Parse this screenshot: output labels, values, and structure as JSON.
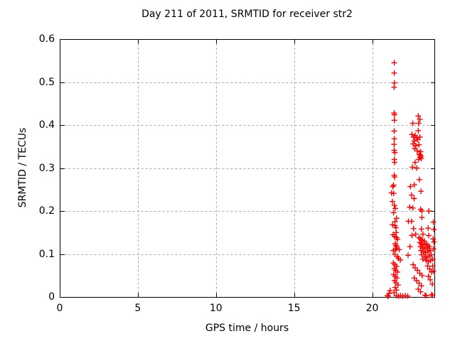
{
  "window": {
    "background": "#ffffff"
  },
  "chart_data": {
    "type": "scatter",
    "title": "Day 211 of 2011, SRMTID for receiver str2",
    "xlabel": "GPS time / hours",
    "ylabel": "SRMTID / TECUs",
    "xlim": [
      0,
      24
    ],
    "ylim": [
      0,
      0.6
    ],
    "x_ticks": [
      0,
      5,
      10,
      15,
      20
    ],
    "x_tick_labels": [
      "0",
      "5",
      "10",
      "15",
      "20"
    ],
    "y_ticks": [
      0,
      0.1,
      0.2,
      0.3,
      0.4,
      0.5,
      0.6
    ],
    "y_tick_labels": [
      "0",
      "0.1",
      "0.2",
      "0.3",
      "0.4",
      "0.5",
      "0.6"
    ],
    "grid": true,
    "legend": "none",
    "marker": "plus",
    "marker_color": "#ff0000",
    "grid_color": "#a8a8a8",
    "frame_color": "#000000",
    "series": [
      {
        "name": "SRMTID",
        "points": [
          [
            21.41,
            0.545
          ],
          [
            21.41,
            0.521
          ],
          [
            21.42,
            0.498
          ],
          [
            21.4,
            0.488
          ],
          [
            21.4,
            0.428
          ],
          [
            21.43,
            0.424
          ],
          [
            21.42,
            0.411
          ],
          [
            21.41,
            0.386
          ],
          [
            21.42,
            0.368
          ],
          [
            21.4,
            0.355
          ],
          [
            21.41,
            0.341
          ],
          [
            21.45,
            0.336
          ],
          [
            21.42,
            0.32
          ],
          [
            21.44,
            0.313
          ],
          [
            21.41,
            0.283
          ],
          [
            21.44,
            0.279
          ],
          [
            21.37,
            0.26
          ],
          [
            21.32,
            0.257
          ],
          [
            21.24,
            0.242
          ],
          [
            21.38,
            0.241
          ],
          [
            21.3,
            0.222
          ],
          [
            21.42,
            0.213
          ],
          [
            21.48,
            0.206
          ],
          [
            21.37,
            0.196
          ],
          [
            21.56,
            0.183
          ],
          [
            21.46,
            0.175
          ],
          [
            21.3,
            0.168
          ],
          [
            21.46,
            0.166
          ],
          [
            21.52,
            0.161
          ],
          [
            21.54,
            0.15
          ],
          [
            21.34,
            0.145
          ],
          [
            21.44,
            0.141
          ],
          [
            21.56,
            0.138
          ],
          [
            21.62,
            0.134
          ],
          [
            21.48,
            0.124
          ],
          [
            21.52,
            0.12
          ],
          [
            21.55,
            0.117
          ],
          [
            21.58,
            0.113
          ],
          [
            21.5,
            0.11
          ],
          [
            21.35,
            0.108
          ],
          [
            21.73,
            0.11
          ],
          [
            21.45,
            0.099
          ],
          [
            21.6,
            0.094
          ],
          [
            21.68,
            0.09
          ],
          [
            21.8,
            0.086
          ],
          [
            21.35,
            0.079
          ],
          [
            21.45,
            0.075
          ],
          [
            21.55,
            0.071
          ],
          [
            21.42,
            0.066
          ],
          [
            21.5,
            0.062
          ],
          [
            21.62,
            0.058
          ],
          [
            21.38,
            0.052
          ],
          [
            21.48,
            0.048
          ],
          [
            21.58,
            0.044
          ],
          [
            21.44,
            0.038
          ],
          [
            21.52,
            0.033
          ],
          [
            21.65,
            0.028
          ],
          [
            21.47,
            0.022
          ],
          [
            21.55,
            0.016
          ],
          [
            21.4,
            0.01
          ],
          [
            21.15,
            0.015
          ],
          [
            21.08,
            0.008
          ],
          [
            20.98,
            0.003
          ],
          [
            21.03,
            0.002
          ],
          [
            21.55,
            0.003
          ],
          [
            21.68,
            0.002
          ],
          [
            21.82,
            0.003
          ],
          [
            21.96,
            0.002
          ],
          [
            22.12,
            0.003
          ],
          [
            22.28,
            0.002
          ],
          [
            23.38,
            0.004
          ],
          [
            23.46,
            0.003
          ],
          [
            23.8,
            0.005
          ],
          [
            23.86,
            0.004
          ],
          [
            22.6,
            0.404
          ],
          [
            22.95,
            0.421
          ],
          [
            23.05,
            0.413
          ],
          [
            22.97,
            0.404
          ],
          [
            22.95,
            0.387
          ],
          [
            22.55,
            0.378
          ],
          [
            22.65,
            0.372
          ],
          [
            22.75,
            0.376
          ],
          [
            22.85,
            0.37
          ],
          [
            22.7,
            0.363
          ],
          [
            22.92,
            0.366
          ],
          [
            23.05,
            0.372
          ],
          [
            22.62,
            0.356
          ],
          [
            22.8,
            0.352
          ],
          [
            23.0,
            0.354
          ],
          [
            22.72,
            0.345
          ],
          [
            22.88,
            0.34
          ],
          [
            23.1,
            0.338
          ],
          [
            23.02,
            0.332
          ],
          [
            23.08,
            0.33
          ],
          [
            23.12,
            0.327
          ],
          [
            23.06,
            0.325
          ],
          [
            23.14,
            0.322
          ],
          [
            22.98,
            0.32
          ],
          [
            22.75,
            0.313
          ],
          [
            22.58,
            0.302
          ],
          [
            22.85,
            0.3
          ],
          [
            23.02,
            0.273
          ],
          [
            22.7,
            0.261
          ],
          [
            22.45,
            0.257
          ],
          [
            23.12,
            0.246
          ],
          [
            22.52,
            0.237
          ],
          [
            22.68,
            0.229
          ],
          [
            22.4,
            0.209
          ],
          [
            22.6,
            0.207
          ],
          [
            23.1,
            0.204
          ],
          [
            23.18,
            0.2
          ],
          [
            23.63,
            0.2
          ],
          [
            23.18,
            0.185
          ],
          [
            22.32,
            0.176
          ],
          [
            22.52,
            0.176
          ],
          [
            22.65,
            0.159
          ],
          [
            23.15,
            0.158
          ],
          [
            23.58,
            0.16
          ],
          [
            22.55,
            0.143
          ],
          [
            22.78,
            0.146
          ],
          [
            23.25,
            0.146
          ],
          [
            23.62,
            0.143
          ],
          [
            22.42,
            0.117
          ],
          [
            22.3,
            0.097
          ],
          [
            23.0,
            0.138
          ],
          [
            23.1,
            0.135
          ],
          [
            23.2,
            0.132
          ],
          [
            23.35,
            0.13
          ],
          [
            23.05,
            0.127
          ],
          [
            23.15,
            0.124
          ],
          [
            23.3,
            0.122
          ],
          [
            23.45,
            0.124
          ],
          [
            23.55,
            0.12
          ],
          [
            23.08,
            0.117
          ],
          [
            23.22,
            0.114
          ],
          [
            23.38,
            0.112
          ],
          [
            23.52,
            0.115
          ],
          [
            23.65,
            0.117
          ],
          [
            23.12,
            0.108
          ],
          [
            23.28,
            0.105
          ],
          [
            23.42,
            0.103
          ],
          [
            23.58,
            0.106
          ],
          [
            23.7,
            0.108
          ],
          [
            23.18,
            0.098
          ],
          [
            23.35,
            0.094
          ],
          [
            23.5,
            0.092
          ],
          [
            23.65,
            0.095
          ],
          [
            23.78,
            0.098
          ],
          [
            23.25,
            0.088
          ],
          [
            23.45,
            0.085
          ],
          [
            23.6,
            0.082
          ],
          [
            23.75,
            0.085
          ],
          [
            23.88,
            0.088
          ],
          [
            23.9,
            0.135
          ],
          [
            23.95,
            0.128
          ],
          [
            23.92,
            0.112
          ],
          [
            22.62,
            0.075
          ],
          [
            22.75,
            0.068
          ],
          [
            22.9,
            0.062
          ],
          [
            23.05,
            0.055
          ],
          [
            23.2,
            0.05
          ],
          [
            22.7,
            0.044
          ],
          [
            22.85,
            0.038
          ],
          [
            23.0,
            0.032
          ],
          [
            23.15,
            0.026
          ],
          [
            22.95,
            0.018
          ],
          [
            23.1,
            0.012
          ],
          [
            23.55,
            0.072
          ],
          [
            23.68,
            0.065
          ],
          [
            23.8,
            0.058
          ],
          [
            23.88,
            0.072
          ],
          [
            23.6,
            0.048
          ],
          [
            23.72,
            0.04
          ],
          [
            23.85,
            0.03
          ],
          [
            23.92,
            0.06
          ],
          [
            23.92,
            0.174
          ],
          [
            23.95,
            0.157
          ]
        ]
      }
    ]
  }
}
